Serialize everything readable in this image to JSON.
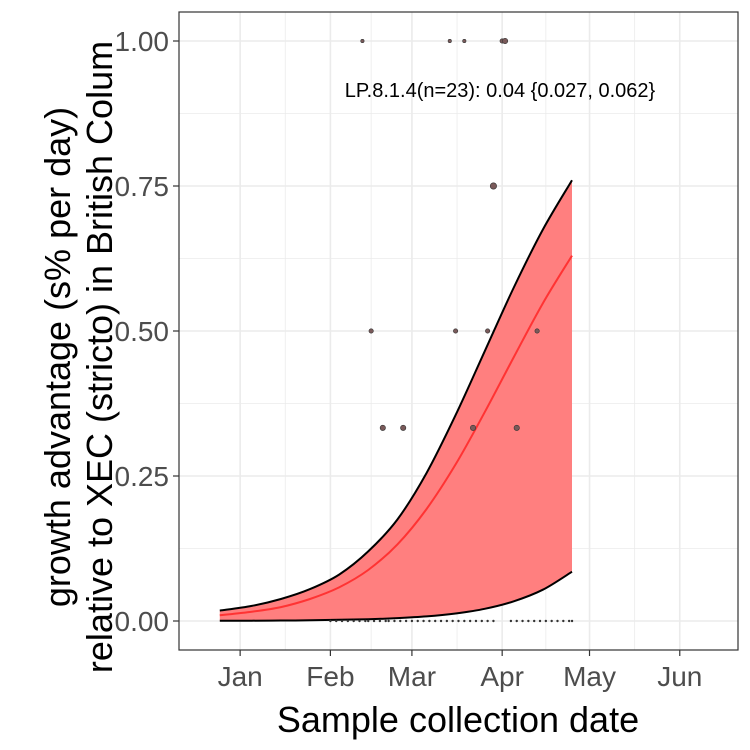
{
  "chart_data": {
    "type": "line",
    "xlabel": "Sample collection date",
    "ylabel_lines": [
      "growth advantage (s% per day)",
      "relative to XEC (stricto) in British Colum"
    ],
    "annotation": "LP.8.1.4(n=23): 0.04 {0.027, 0.062}",
    "x_ticks": [
      {
        "label": "Jan",
        "date": "2025-01-01"
      },
      {
        "label": "Feb",
        "date": "2025-02-01"
      },
      {
        "label": "Mar",
        "date": "2025-03-01"
      },
      {
        "label": "Apr",
        "date": "2025-04-01"
      },
      {
        "label": "May",
        "date": "2025-05-01"
      },
      {
        "label": "Jun",
        "date": "2025-06-01"
      }
    ],
    "xlim": [
      "2024-12-11",
      "2025-06-21"
    ],
    "y_ticks": [
      0,
      0.25,
      0.5,
      0.75,
      1
    ],
    "y_tick_labels": [
      "0.00",
      "0.25",
      "0.50",
      "0.75",
      "1.00"
    ],
    "ylim": [
      -0.05,
      1.05
    ],
    "grid": true,
    "colors": {
      "ribbon": "#ff7f7f",
      "fit_line": "#ff3333",
      "ci_bounds": "#000000",
      "points": "#333333",
      "grid": "#ebebeb",
      "panel_border": "#333333"
    },
    "series": [
      {
        "x": [
          "2024-12-25",
          "2025-01-05",
          "2025-01-15",
          "2025-01-25",
          "2025-02-04",
          "2025-02-14",
          "2025-02-24",
          "2025-03-06",
          "2025-03-16",
          "2025-03-26",
          "2025-04-05",
          "2025-04-15",
          "2025-04-25"
        ],
        "values": [
          0.01,
          0.016,
          0.024,
          0.038,
          0.058,
          0.088,
          0.132,
          0.193,
          0.27,
          0.36,
          0.455,
          0.548,
          0.63
        ]
      },
      {
        "x": [
          "2024-12-25",
          "2025-01-05",
          "2025-01-15",
          "2025-01-25",
          "2025-02-04",
          "2025-02-14",
          "2025-02-24",
          "2025-03-06",
          "2025-03-16",
          "2025-03-26",
          "2025-04-05",
          "2025-04-15",
          "2025-04-25"
        ],
        "values": [
          0.018,
          0.026,
          0.038,
          0.055,
          0.08,
          0.12,
          0.175,
          0.255,
          0.355,
          0.465,
          0.575,
          0.675,
          0.76
        ]
      },
      {
        "x": [
          "2024-12-25",
          "2025-01-05",
          "2025-01-15",
          "2025-01-25",
          "2025-02-04",
          "2025-02-14",
          "2025-02-24",
          "2025-03-06",
          "2025-03-16",
          "2025-03-26",
          "2025-04-05",
          "2025-04-15",
          "2025-04-25"
        ],
        "values": [
          0.0003,
          0.0005,
          0.0008,
          0.0013,
          0.002,
          0.003,
          0.005,
          0.008,
          0.013,
          0.021,
          0.034,
          0.054,
          0.085
        ]
      }
    ],
    "points": [
      {
        "x": "2025-02-12",
        "y": 1.0,
        "n": 1
      },
      {
        "x": "2025-03-14",
        "y": 1.0,
        "n": 1
      },
      {
        "x": "2025-03-19",
        "y": 1.0,
        "n": 1
      },
      {
        "x": "2025-04-01",
        "y": 1.0,
        "n": 2
      },
      {
        "x": "2025-04-02",
        "y": 1.0,
        "n": 3
      },
      {
        "x": "2025-03-29",
        "y": 0.75,
        "n": 4
      },
      {
        "x": "2025-02-15",
        "y": 0.5,
        "n": 2
      },
      {
        "x": "2025-03-16",
        "y": 0.5,
        "n": 2
      },
      {
        "x": "2025-03-27",
        "y": 0.5,
        "n": 2
      },
      {
        "x": "2025-04-13",
        "y": 0.5,
        "n": 2
      },
      {
        "x": "2025-02-19",
        "y": 0.333,
        "n": 3
      },
      {
        "x": "2025-02-26",
        "y": 0.333,
        "n": 3
      },
      {
        "x": "2025-03-22",
        "y": 0.333,
        "n": 3
      },
      {
        "x": "2025-04-06",
        "y": 0.333,
        "n": 3
      }
    ],
    "zero_points": [
      "2025-02-01",
      "2025-02-03",
      "2025-02-05",
      "2025-02-07",
      "2025-02-09",
      "2025-02-11",
      "2025-02-13",
      "2025-02-14",
      "2025-02-16",
      "2025-02-18",
      "2025-02-20",
      "2025-02-21",
      "2025-02-23",
      "2025-02-25",
      "2025-02-27",
      "2025-03-01",
      "2025-03-03",
      "2025-03-05",
      "2025-03-07",
      "2025-03-09",
      "2025-03-11",
      "2025-03-13",
      "2025-03-15",
      "2025-03-17",
      "2025-03-19",
      "2025-03-21",
      "2025-03-23",
      "2025-03-25",
      "2025-03-27",
      "2025-03-29",
      "2025-04-04",
      "2025-04-06",
      "2025-04-08",
      "2025-04-10",
      "2025-04-12",
      "2025-04-14",
      "2025-04-16",
      "2025-04-18",
      "2025-04-20",
      "2025-04-22",
      "2025-04-24",
      "2025-04-25"
    ]
  }
}
